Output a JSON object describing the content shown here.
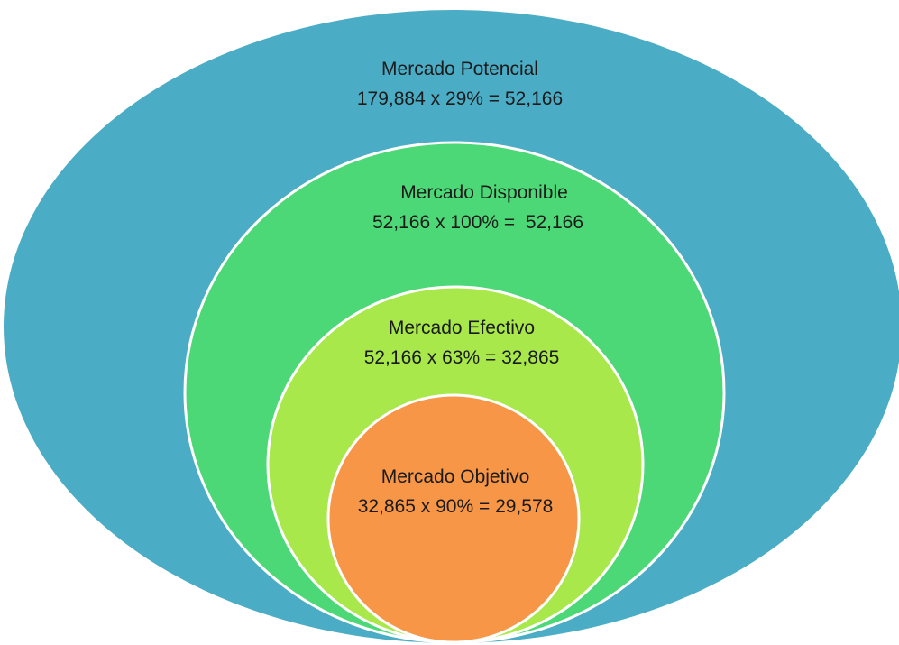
{
  "nodes": [
    {
      "label": "Mercado Potencial",
      "formula": "179,884 x 29% = 52,166"
    },
    {
      "label": "Mercado Disponible",
      "formula": "52,166 x 100% =  52,166"
    },
    {
      "label": "Mercado Efectivo",
      "formula": "52,166 x 63% = 32,865"
    },
    {
      "label": "Mercado Objetivo",
      "formula": "32,865 x 90% = 29,578"
    }
  ]
}
